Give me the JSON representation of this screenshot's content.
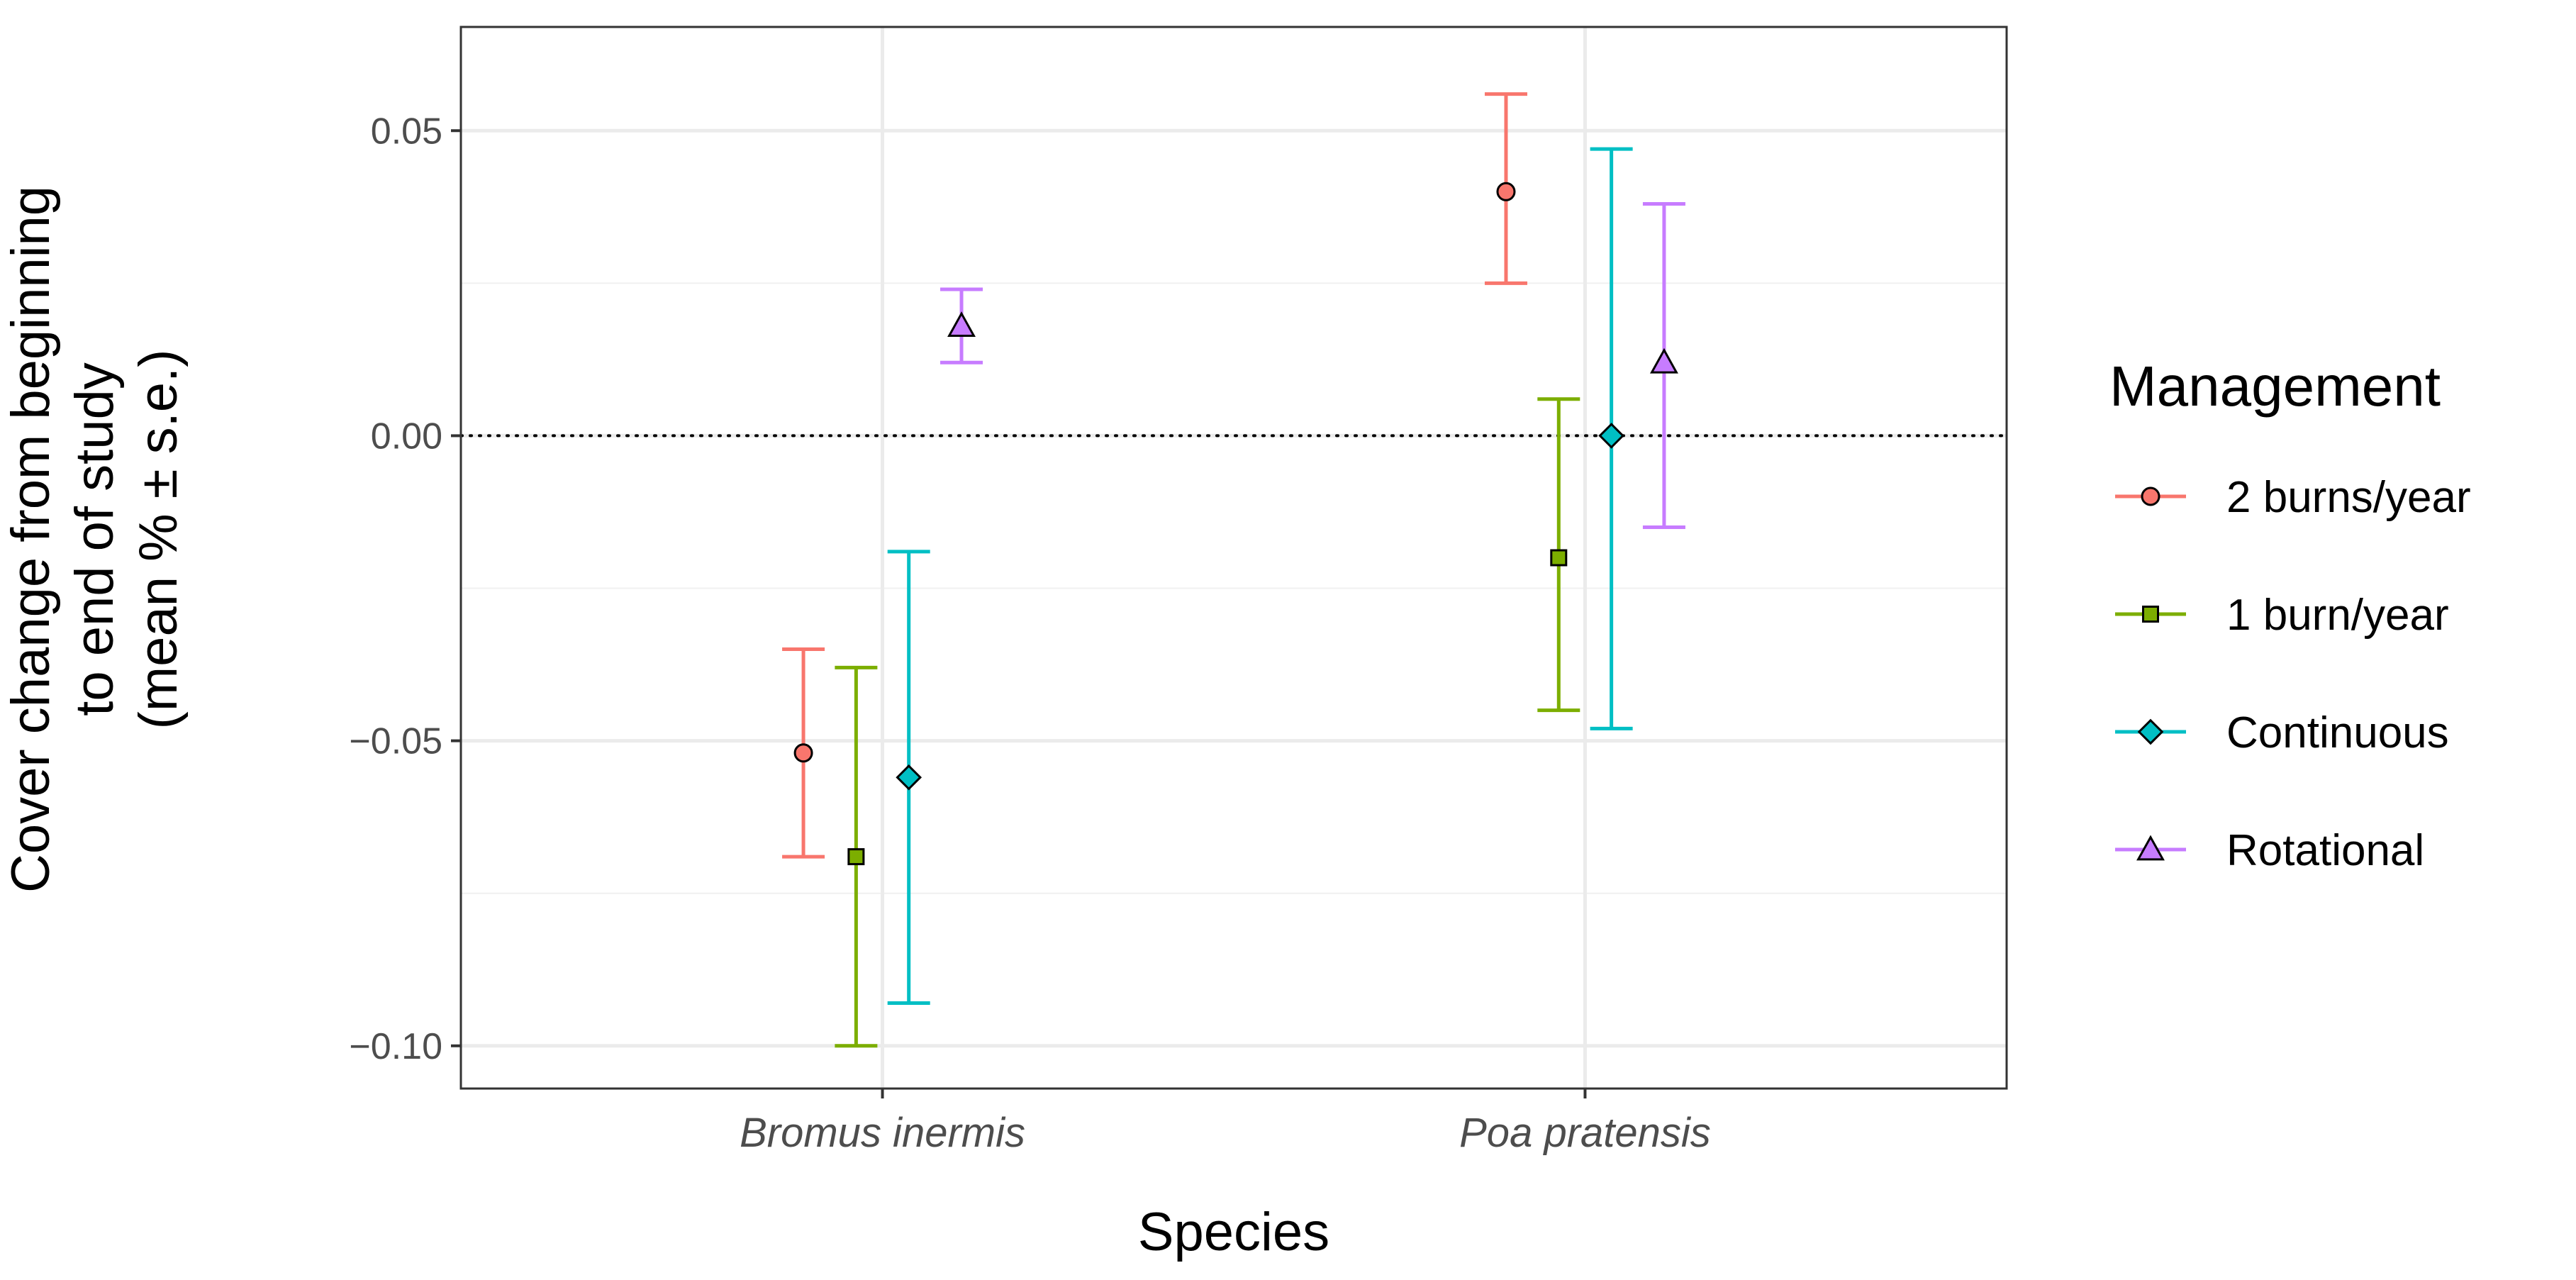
{
  "chart_data": {
    "type": "scatter",
    "xlabel": "Species",
    "ylabel_lines": [
      "Cover change from beginning",
      "to end of study",
      "(mean % ± s.e.)"
    ],
    "categories": [
      "Bromus inermis",
      "Poa pratensis"
    ],
    "ylim": [
      -0.107,
      0.067
    ],
    "y_ticks": [
      -0.1,
      -0.05,
      0.0,
      0.05
    ],
    "y_tick_labels": [
      "−0.10",
      "−0.05",
      "0.00",
      "0.05"
    ],
    "reference_line": 0.0,
    "grid": true,
    "legend": {
      "title": "Management",
      "position": "right"
    },
    "series": [
      {
        "name": "2 burns/year",
        "color": "#F8766D",
        "shape": "circle",
        "dodge": -0.1125,
        "points": [
          {
            "category": "Bromus inermis",
            "mean": -0.052,
            "lower": -0.069,
            "upper": -0.035
          },
          {
            "category": "Poa pratensis",
            "mean": 0.04,
            "lower": 0.025,
            "upper": 0.056
          }
        ]
      },
      {
        "name": "1 burn/year",
        "color": "#7CAE00",
        "shape": "square",
        "dodge": -0.0375,
        "points": [
          {
            "category": "Bromus inermis",
            "mean": -0.069,
            "lower": -0.1,
            "upper": -0.038
          },
          {
            "category": "Poa pratensis",
            "mean": -0.02,
            "lower": -0.045,
            "upper": 0.006
          }
        ]
      },
      {
        "name": "Continuous",
        "color": "#00BFC4",
        "shape": "diamond",
        "dodge": 0.0375,
        "points": [
          {
            "category": "Bromus inermis",
            "mean": -0.056,
            "lower": -0.093,
            "upper": -0.019
          },
          {
            "category": "Poa pratensis",
            "mean": 0.0,
            "lower": -0.048,
            "upper": 0.047
          }
        ]
      },
      {
        "name": "Rotational",
        "color": "#C77CFF",
        "shape": "triangle",
        "dodge": 0.1125,
        "points": [
          {
            "category": "Bromus inermis",
            "mean": 0.018,
            "lower": 0.012,
            "upper": 0.024
          },
          {
            "category": "Poa pratensis",
            "mean": 0.012,
            "lower": -0.015,
            "upper": 0.038
          }
        ]
      }
    ]
  }
}
